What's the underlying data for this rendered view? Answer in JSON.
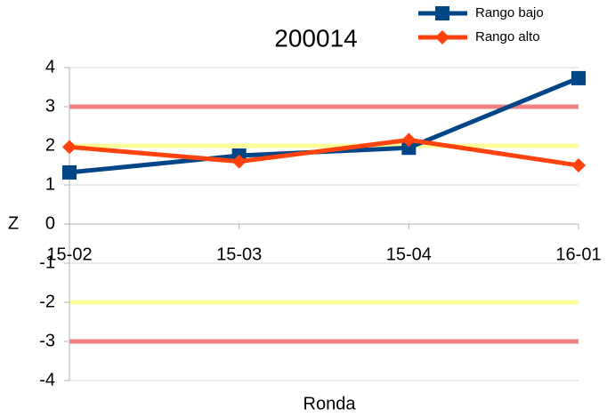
{
  "chart_data": {
    "type": "line",
    "title": "200014",
    "x_label": "Ronda",
    "y_label": "Z",
    "categories": [
      "15-02",
      "15-03",
      "15-04",
      "16-01"
    ],
    "series": [
      {
        "name": "Rango bajo",
        "color": "#004586",
        "marker": "square",
        "values": [
          1.32,
          1.75,
          1.95,
          3.73
        ]
      },
      {
        "name": "Rango alto",
        "color": "#ff420e",
        "marker": "diamond",
        "values": [
          1.97,
          1.6,
          2.15,
          1.5
        ]
      }
    ],
    "reference_lines": [
      {
        "value": 3,
        "color": "#f08080"
      },
      {
        "value": 2,
        "color": "#ffff99"
      },
      {
        "value": -2,
        "color": "#ffff99"
      },
      {
        "value": -3,
        "color": "#f08080"
      }
    ],
    "ylim": [
      -4,
      4
    ],
    "yticks": [
      -4,
      -3,
      -2,
      -1,
      0,
      1,
      2,
      3,
      4
    ],
    "grid": true,
    "legend": "top-right"
  }
}
